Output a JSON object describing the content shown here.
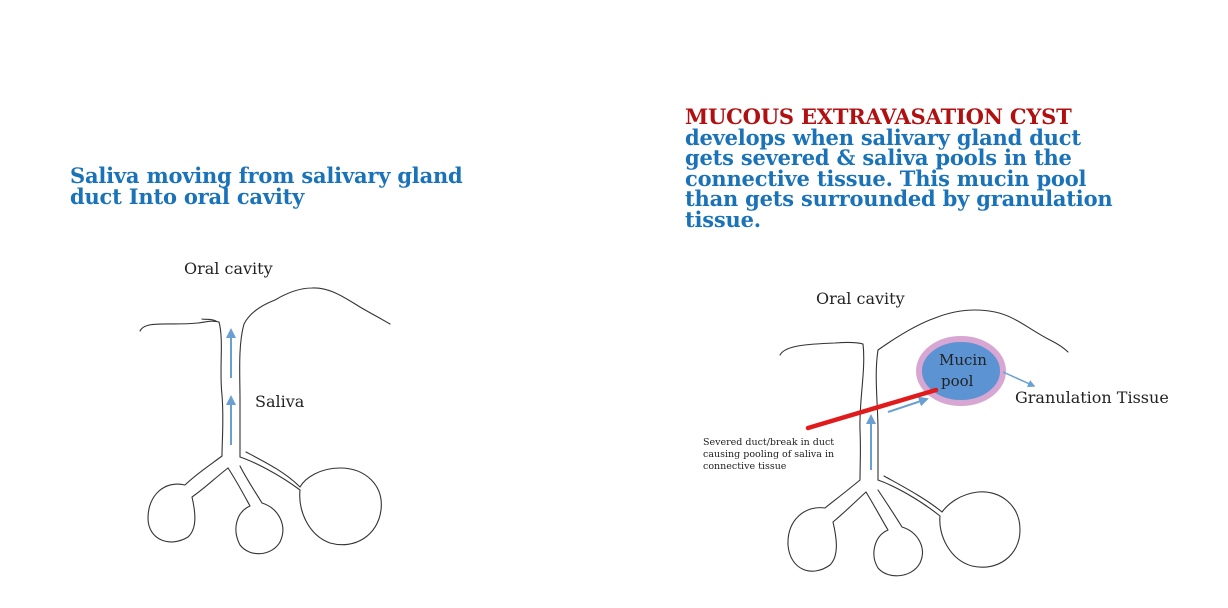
{
  "left_panel": {
    "caption_line1": "Saliva moving from salivary gland",
    "caption_line2": "duct Into oral cavity",
    "oral_cavity_label": "Oral cavity",
    "saliva_label": "Saliva"
  },
  "right_panel": {
    "title": "MUCOUS EXTRAVASATION CYST",
    "description_lines": [
      "develops when salivary gland duct",
      "gets severed & saliva pools in the",
      "connective tissue. This mucin pool",
      "than gets surrounded by granulation",
      "tissue."
    ],
    "oral_cavity_label": "Oral cavity",
    "mucin_label_line1": "Mucin",
    "mucin_label_line2": "pool",
    "granulation_label": "Granulation Tissue",
    "severed_note_lines": [
      "Severed duct/break in duct",
      "causing  pooling of saliva in",
      "connective tissue"
    ]
  },
  "colors": {
    "heading_blue": "#1a73b8",
    "title_red": "#b01010",
    "arrow_blue": "#6a9fd2",
    "mucin_fill": "#5b93d3",
    "granulation_ring": "#d7a6d2",
    "severed_line_red": "#e01b1b"
  }
}
